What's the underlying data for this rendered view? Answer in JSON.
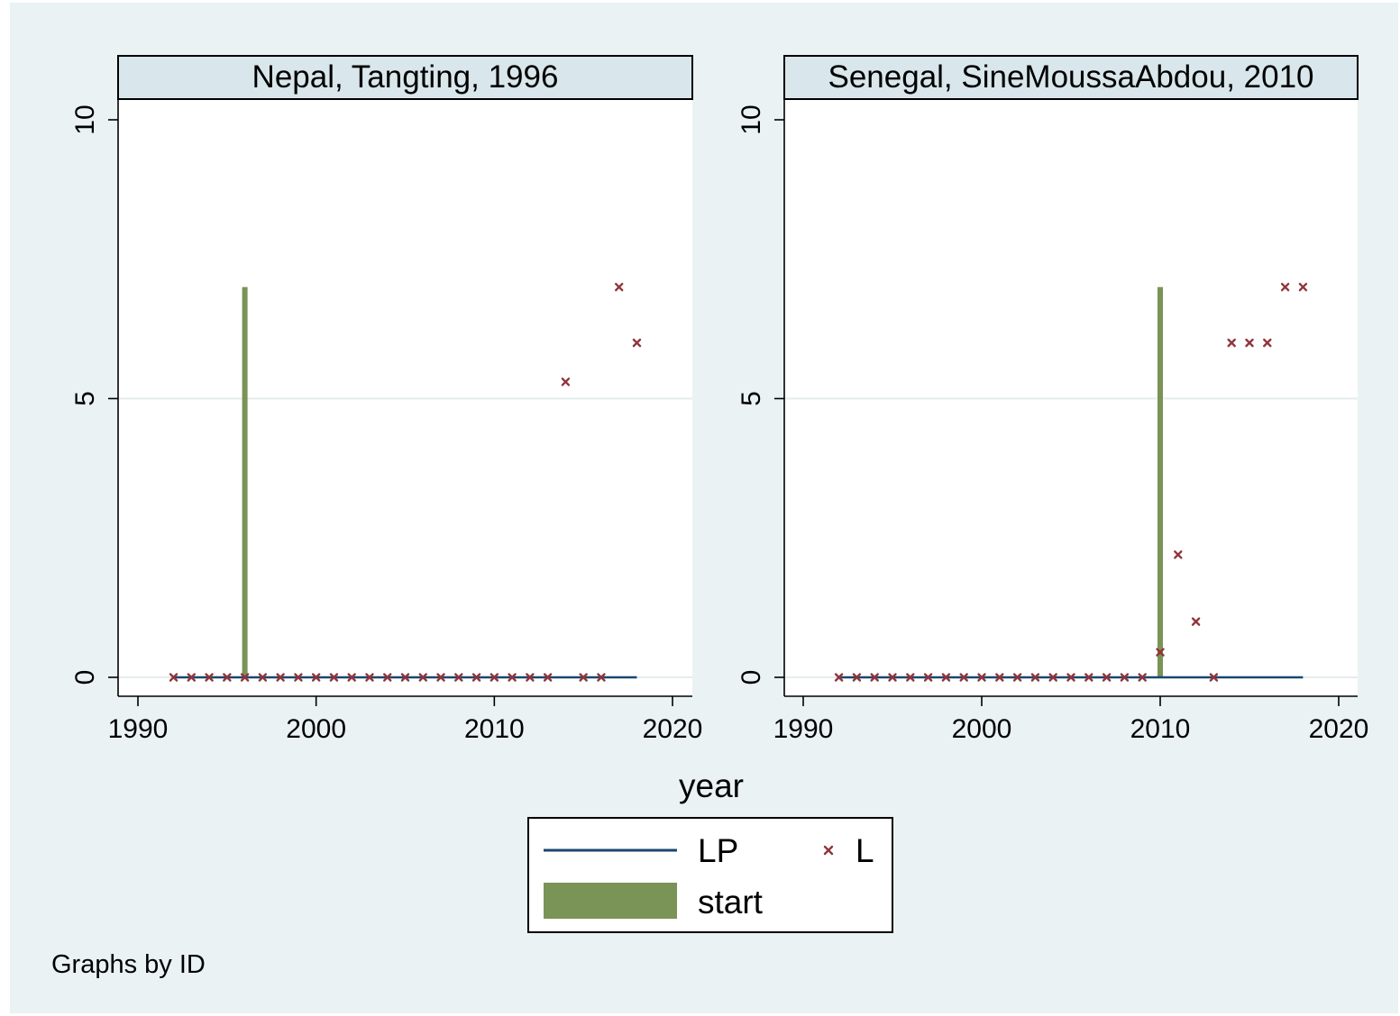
{
  "colors": {
    "background": "#eaf2f3",
    "plot_background": "#ffffff",
    "strip_background": "#d9e6eb",
    "gridline": "#e4ecee",
    "LP": "#1a476f",
    "L": "#90353b",
    "start": "#7a9357"
  },
  "legend": {
    "items": [
      {
        "key": "LP",
        "label": "LP",
        "marker": "line"
      },
      {
        "key": "L",
        "label": "L",
        "marker": "x"
      },
      {
        "key": "start",
        "label": "start",
        "marker": "bar"
      }
    ]
  },
  "note": "Graphs by ID",
  "chart_data": [
    {
      "type": "line",
      "title": "Nepal, Tangting, 1996",
      "xlabel": "year",
      "ylabel": "",
      "xlim": [
        1990,
        2020
      ],
      "ylim": [
        0,
        10
      ],
      "x_ticks": [
        "1990",
        "2000",
        "2010",
        "2020"
      ],
      "y_ticks": [
        "0",
        "5",
        "10"
      ],
      "grid": true,
      "series": [
        {
          "name": "LP",
          "kind": "line",
          "points": [
            [
              1992,
              0
            ],
            [
              2018,
              0
            ]
          ]
        },
        {
          "name": "L",
          "kind": "scatter",
          "points": [
            [
              1992,
              0
            ],
            [
              1993,
              0
            ],
            [
              1994,
              0
            ],
            [
              1995,
              0
            ],
            [
              1996,
              0
            ],
            [
              1997,
              0
            ],
            [
              1998,
              0
            ],
            [
              1999,
              0
            ],
            [
              2000,
              0
            ],
            [
              2001,
              0
            ],
            [
              2002,
              0
            ],
            [
              2003,
              0
            ],
            [
              2004,
              0
            ],
            [
              2005,
              0
            ],
            [
              2006,
              0
            ],
            [
              2007,
              0
            ],
            [
              2008,
              0
            ],
            [
              2009,
              0
            ],
            [
              2010,
              0
            ],
            [
              2011,
              0
            ],
            [
              2012,
              0
            ],
            [
              2013,
              0
            ],
            [
              2014,
              5.3
            ],
            [
              2015,
              0
            ],
            [
              2016,
              0
            ],
            [
              2017,
              7
            ],
            [
              2018,
              6
            ]
          ]
        },
        {
          "name": "start",
          "kind": "bar",
          "points": [
            [
              1996,
              7
            ]
          ]
        }
      ]
    },
    {
      "type": "line",
      "title": "Senegal, SineMoussaAbdou, 2010",
      "xlabel": "year",
      "ylabel": "",
      "xlim": [
        1990,
        2020
      ],
      "ylim": [
        0,
        10
      ],
      "x_ticks": [
        "1990",
        "2000",
        "2010",
        "2020"
      ],
      "y_ticks": [
        "0",
        "5",
        "10"
      ],
      "grid": true,
      "series": [
        {
          "name": "LP",
          "kind": "line",
          "points": [
            [
              1992,
              0
            ],
            [
              2018,
              0
            ]
          ]
        },
        {
          "name": "L",
          "kind": "scatter",
          "points": [
            [
              1992,
              0
            ],
            [
              1993,
              0
            ],
            [
              1994,
              0
            ],
            [
              1995,
              0
            ],
            [
              1996,
              0
            ],
            [
              1997,
              0
            ],
            [
              1998,
              0
            ],
            [
              1999,
              0
            ],
            [
              2000,
              0
            ],
            [
              2001,
              0
            ],
            [
              2002,
              0
            ],
            [
              2003,
              0
            ],
            [
              2004,
              0
            ],
            [
              2005,
              0
            ],
            [
              2006,
              0
            ],
            [
              2007,
              0
            ],
            [
              2008,
              0
            ],
            [
              2009,
              0
            ],
            [
              2010,
              0.45
            ],
            [
              2011,
              2.2
            ],
            [
              2012,
              1
            ],
            [
              2013,
              0
            ],
            [
              2014,
              6
            ],
            [
              2015,
              6
            ],
            [
              2016,
              6
            ],
            [
              2017,
              7
            ],
            [
              2018,
              7
            ]
          ]
        },
        {
          "name": "start",
          "kind": "bar",
          "points": [
            [
              2010,
              7
            ]
          ]
        }
      ]
    }
  ]
}
